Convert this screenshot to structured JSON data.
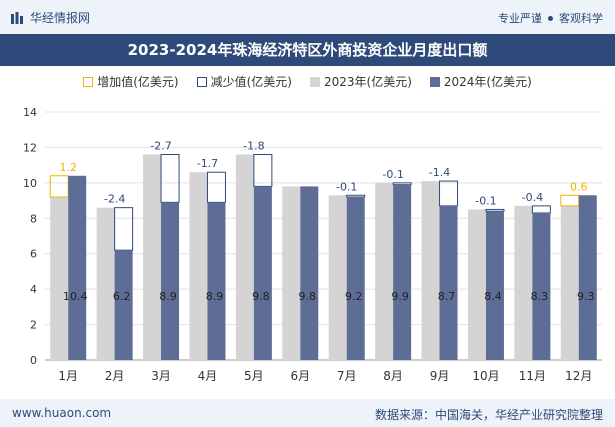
{
  "header": {
    "brand": "华经情报网",
    "tag1": "专业严谨",
    "tag2": "客观科学",
    "title": "2023-2024年珠海经济特区外商投资企业月度出口额"
  },
  "legend": {
    "inc": "增加值(亿美元)",
    "dec": "减少值(亿美元)",
    "s2023": "2023年(亿美元)",
    "s2024": "2024年(亿美元)"
  },
  "footer": {
    "website": "www.huaon.com",
    "source": "数据来源：中国海关，华经产业研究院整理"
  },
  "colors": {
    "primary": "#2e4a7a",
    "bar2023": "#d4d4d4",
    "bar2024": "#5d6d95",
    "increase": "#f0b400",
    "decrease": "#2e4a7a"
  },
  "chart_data": {
    "type": "bar",
    "categories": [
      "1月",
      "2月",
      "3月",
      "4月",
      "5月",
      "6月",
      "7月",
      "8月",
      "9月",
      "10月",
      "11月",
      "12月"
    ],
    "series": [
      {
        "name": "2023年(亿美元)",
        "values": [
          9.2,
          8.6,
          11.6,
          10.6,
          11.6,
          9.8,
          9.3,
          10.0,
          10.1,
          8.5,
          8.7,
          8.7
        ]
      },
      {
        "name": "2024年(亿美元)",
        "values": [
          10.4,
          6.2,
          8.9,
          8.9,
          9.8,
          9.8,
          9.2,
          9.9,
          8.7,
          8.4,
          8.3,
          9.3
        ]
      }
    ],
    "change_labels": [
      "1.2",
      "-2.4",
      "-2.7",
      "-1.7",
      "-1.8",
      "",
      "-0.1",
      "-0.1",
      "-1.4",
      "-0.1",
      "-0.4",
      "0.6"
    ],
    "value_labels": [
      "10.4",
      "6.2",
      "8.9",
      "8.9",
      "9.8",
      "9.8",
      "9.2",
      "9.9",
      "8.7",
      "8.4",
      "8.3",
      "9.3"
    ],
    "yticks": [
      "0",
      "2",
      "4",
      "6",
      "8",
      "10",
      "12",
      "14"
    ],
    "ylim": [
      0,
      14
    ],
    "grid": true
  }
}
